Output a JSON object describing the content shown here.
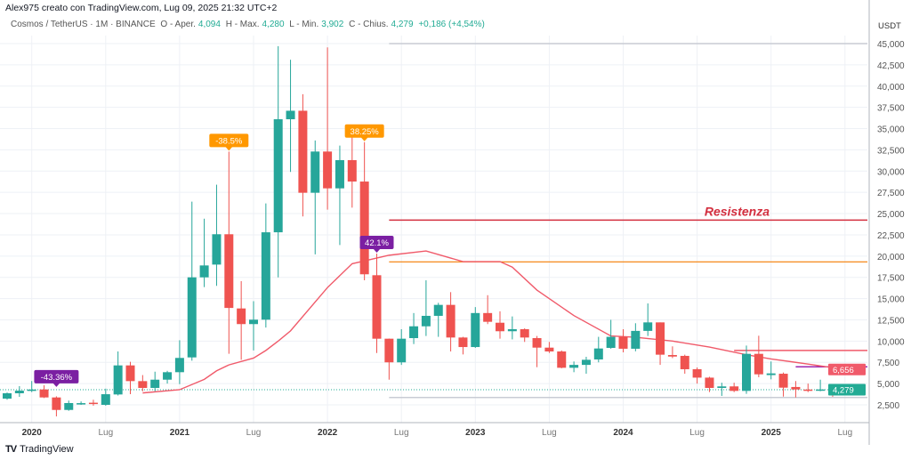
{
  "header": {
    "credit": "Alex975 creato con TradingView.com, Lug 09, 2025 21:32 UTC+2",
    "symbol": "Cosmos / TetherUS · 1M · BINANCE",
    "open_label": "O - Aper.",
    "open": "4,094",
    "high_label": "H - Max.",
    "high": "4,280",
    "low_label": "L - Min.",
    "low": "3,902",
    "close_label": "C - Chius.",
    "close": "4,279",
    "change": "+0,186 (+4,54%)"
  },
  "footer": {
    "brand": "TradingView",
    "logo_icon": "tradingview-logo-icon"
  },
  "colors": {
    "up": "#26a69a",
    "down": "#ef5350",
    "ma": "#f05a6a",
    "resistance": "#d32f3f",
    "support_orange": "#f57c00",
    "purple": "#7b1fa2",
    "orange_label": "#ff9800",
    "grid": "#eef1f6"
  },
  "chart_data": {
    "type": "candlestick",
    "title": "",
    "y_axis_unit": "USDT",
    "ylim": [
      0,
      47
    ],
    "grid": true,
    "y_ticks": [
      {
        "v": 2.5,
        "label": "2,500"
      },
      {
        "v": 5,
        "label": "5,000"
      },
      {
        "v": 7.5,
        "label": "7,500"
      },
      {
        "v": 10,
        "label": "10,000"
      },
      {
        "v": 12.5,
        "label": "12,500"
      },
      {
        "v": 15,
        "label": "15,000"
      },
      {
        "v": 17.5,
        "label": "17,500"
      },
      {
        "v": 20,
        "label": "20,000"
      },
      {
        "v": 22.5,
        "label": "22,500"
      },
      {
        "v": 25,
        "label": "25,000"
      },
      {
        "v": 27.5,
        "label": "27,500"
      },
      {
        "v": 30,
        "label": "30,000"
      },
      {
        "v": 32.5,
        "label": "32,500"
      },
      {
        "v": 35,
        "label": "35,000"
      },
      {
        "v": 37.5,
        "label": "37,500"
      },
      {
        "v": 40,
        "label": "40,000"
      },
      {
        "v": 42.5,
        "label": "42,500"
      },
      {
        "v": 45,
        "label": "45,000"
      }
    ],
    "x_ticks": [
      {
        "t": "2020-01",
        "label": "2020",
        "bold": true
      },
      {
        "t": "2020-07",
        "label": "Lug"
      },
      {
        "t": "2021-01",
        "label": "2021",
        "bold": true
      },
      {
        "t": "2021-07",
        "label": "Lug"
      },
      {
        "t": "2022-01",
        "label": "2022",
        "bold": true
      },
      {
        "t": "2022-07",
        "label": "Lug"
      },
      {
        "t": "2023-01",
        "label": "2023",
        "bold": true
      },
      {
        "t": "2023-07",
        "label": "Lug"
      },
      {
        "t": "2024-01",
        "label": "2024",
        "bold": true
      },
      {
        "t": "2024-07",
        "label": "Lug"
      },
      {
        "t": "2025-01",
        "label": "2025",
        "bold": true
      },
      {
        "t": "2025-07",
        "label": "Lug"
      }
    ],
    "candles": [
      [
        "2019-11",
        3.23,
        3.95,
        3.1,
        3.86
      ],
      [
        "2019-12",
        3.86,
        4.7,
        3.44,
        4.17
      ],
      [
        "2020-01",
        4.14,
        5.3,
        4.0,
        4.3
      ],
      [
        "2020-02",
        4.31,
        4.8,
        3.3,
        3.37
      ],
      [
        "2020-03",
        3.37,
        3.5,
        1.14,
        1.9
      ],
      [
        "2020-04",
        1.9,
        3.0,
        1.8,
        2.71
      ],
      [
        "2020-05",
        2.68,
        2.9,
        2.5,
        2.7
      ],
      [
        "2020-06",
        2.75,
        3.1,
        2.4,
        2.6
      ],
      [
        "2020-07",
        2.5,
        4.4,
        2.4,
        3.75
      ],
      [
        "2020-08",
        3.72,
        8.78,
        3.6,
        7.14
      ],
      [
        "2020-09",
        7.14,
        7.56,
        3.75,
        5.29
      ],
      [
        "2020-10",
        5.29,
        6.0,
        4.1,
        4.49
      ],
      [
        "2020-11",
        4.49,
        6.4,
        4.1,
        5.46
      ],
      [
        "2020-12",
        5.46,
        6.5,
        5.0,
        6.34
      ],
      [
        "2021-01",
        6.34,
        10.1,
        4.94,
        8.02
      ],
      [
        "2021-02",
        8.08,
        26.4,
        7.7,
        17.5
      ],
      [
        "2021-03",
        17.5,
        24.4,
        16.35,
        18.9
      ],
      [
        "2021-04",
        19.0,
        28.4,
        16.5,
        22.57
      ],
      [
        "2021-05",
        22.57,
        32.3,
        8.5,
        13.9
      ],
      [
        "2021-06",
        13.84,
        17.05,
        7.8,
        12.0
      ],
      [
        "2021-07",
        12.0,
        14.7,
        8.9,
        12.52
      ],
      [
        "2021-08",
        12.52,
        26.2,
        11.6,
        22.8
      ],
      [
        "2021-09",
        22.8,
        44.7,
        17.5,
        36.1
      ],
      [
        "2021-10",
        36.1,
        43.1,
        29.9,
        37.1
      ],
      [
        "2021-11",
        37.1,
        39.05,
        24.66,
        27.45
      ],
      [
        "2021-12",
        27.45,
        33.6,
        20.2,
        32.3
      ],
      [
        "2022-01",
        32.3,
        44.55,
        25.46,
        27.97
      ],
      [
        "2022-02",
        27.97,
        33.0,
        21.3,
        31.29
      ],
      [
        "2022-03",
        31.29,
        34.4,
        25.7,
        28.77
      ],
      [
        "2022-04",
        28.77,
        33.4,
        17.15,
        17.86
      ],
      [
        "2022-05",
        17.75,
        20.3,
        8.6,
        10.28
      ],
      [
        "2022-06",
        10.28,
        10.3,
        5.46,
        7.5
      ],
      [
        "2022-07",
        7.5,
        11.4,
        7.2,
        10.28
      ],
      [
        "2022-08",
        10.35,
        13.3,
        9.65,
        11.74
      ],
      [
        "2022-09",
        11.74,
        17.15,
        10.6,
        12.97
      ],
      [
        "2022-10",
        12.97,
        14.5,
        10.5,
        14.26
      ],
      [
        "2022-11",
        14.26,
        15.76,
        8.78,
        10.42
      ],
      [
        "2022-12",
        10.42,
        10.5,
        8.43,
        9.3
      ],
      [
        "2023-01",
        9.3,
        14.0,
        9.2,
        13.3
      ],
      [
        "2023-02",
        13.3,
        15.4,
        12.0,
        12.27
      ],
      [
        "2023-03",
        12.16,
        13.5,
        10.28,
        11.16
      ],
      [
        "2023-04",
        11.16,
        12.9,
        10.2,
        11.4
      ],
      [
        "2023-05",
        11.4,
        11.5,
        9.9,
        10.42
      ],
      [
        "2023-06",
        10.35,
        10.6,
        6.93,
        9.23
      ],
      [
        "2023-07",
        9.23,
        9.9,
        8.6,
        8.78
      ],
      [
        "2023-08",
        8.78,
        8.9,
        6.8,
        6.86
      ],
      [
        "2023-09",
        6.86,
        7.6,
        6.34,
        7.2
      ],
      [
        "2023-10",
        7.2,
        8.15,
        6.16,
        7.8
      ],
      [
        "2023-11",
        7.84,
        10.5,
        7.5,
        9.13
      ],
      [
        "2023-12",
        9.2,
        12.5,
        9.1,
        10.5
      ],
      [
        "2024-01",
        10.5,
        11.4,
        8.68,
        9.1
      ],
      [
        "2024-02",
        9.1,
        12.1,
        8.8,
        11.2
      ],
      [
        "2024-03",
        11.2,
        14.43,
        10.6,
        12.2
      ],
      [
        "2024-04",
        12.2,
        12.2,
        7.2,
        8.4
      ],
      [
        "2024-05",
        8.36,
        9.38,
        8.0,
        8.18
      ],
      [
        "2024-06",
        8.26,
        8.4,
        6.16,
        6.69
      ],
      [
        "2024-07",
        6.69,
        6.9,
        5.0,
        5.7
      ],
      [
        "2024-08",
        5.7,
        5.8,
        4.0,
        4.49
      ],
      [
        "2024-09",
        4.49,
        5.1,
        3.55,
        4.67
      ],
      [
        "2024-10",
        4.67,
        5.1,
        4.0,
        4.14
      ],
      [
        "2024-11",
        4.14,
        9.48,
        3.79,
        8.5
      ],
      [
        "2024-12",
        8.5,
        10.63,
        5.75,
        6.09
      ],
      [
        "2025-01",
        6.0,
        7.6,
        5.5,
        6.2
      ],
      [
        "2025-02",
        6.16,
        6.3,
        3.47,
        4.52
      ],
      [
        "2025-03",
        4.6,
        5.3,
        3.37,
        4.31
      ],
      [
        "2025-04",
        4.3,
        5.0,
        4.0,
        4.25
      ],
      [
        "2025-05",
        4.25,
        5.46,
        4.1,
        4.31
      ],
      [
        "2025-06",
        4.35,
        4.5,
        3.45,
        4.0
      ],
      [
        "2025-07",
        4.094,
        4.28,
        3.902,
        4.279
      ]
    ],
    "moving_average": [
      [
        "2020-10",
        3.9
      ],
      [
        "2021-01",
        4.28
      ],
      [
        "2021-03",
        5.5
      ],
      [
        "2021-04",
        6.5
      ],
      [
        "2021-05",
        7.2
      ],
      [
        "2021-07",
        8.0
      ],
      [
        "2021-08",
        8.9
      ],
      [
        "2021-09",
        10.0
      ],
      [
        "2021-10",
        11.2
      ],
      [
        "2022-01",
        16.3
      ],
      [
        "2022-03",
        19.1
      ],
      [
        "2022-06",
        20.1
      ],
      [
        "2022-09",
        20.6
      ],
      [
        "2022-12",
        19.35
      ],
      [
        "2023-03",
        19.35
      ],
      [
        "2023-04",
        18.7
      ],
      [
        "2023-06",
        16.0
      ],
      [
        "2023-09",
        13.0
      ],
      [
        "2023-12",
        10.6
      ],
      [
        "2024-02",
        10.45
      ],
      [
        "2024-05",
        10.0
      ],
      [
        "2024-08",
        9.3
      ],
      [
        "2024-11",
        8.4
      ],
      [
        "2025-01",
        7.9
      ],
      [
        "2025-04",
        7.3
      ],
      [
        "2025-07",
        6.656
      ]
    ],
    "horizontal_lines": [
      {
        "v": 45.0,
        "from": "2022-06",
        "color": "#c8ccd4",
        "width": 1.5
      },
      {
        "v": 24.24,
        "from": "2022-06",
        "color": "#d32f3f",
        "width": 1.5,
        "label": "Resistenza"
      },
      {
        "v": 19.32,
        "from": "2022-06",
        "color": "#f57c00",
        "width": 1.2
      },
      {
        "v": 8.9,
        "from": "2024-10",
        "color": "#f05a6a",
        "width": 1.5
      },
      {
        "v": 6.97,
        "from": "2025-03",
        "color": "#9c27b0",
        "width": 1.5
      },
      {
        "v": 3.37,
        "from": "2022-06",
        "color": "#c8ccd4",
        "width": 1.5
      }
    ],
    "annotations": [
      {
        "t": "2020-03",
        "v": 4.5,
        "text": "-43.36%",
        "color": "#7b1fa2"
      },
      {
        "t": "2021-05",
        "v": 32.3,
        "text": "-38.5%",
        "color": "#ff9800"
      },
      {
        "t": "2022-04",
        "v": 33.4,
        "text": "38.25%",
        "color": "#ff9800"
      },
      {
        "t": "2022-05",
        "v": 20.3,
        "text": "42.1%",
        "color": "#7b1fa2"
      }
    ],
    "price_badges": [
      {
        "v": 6.656,
        "label": "6,656",
        "color": "#f05a6a"
      },
      {
        "v": 4.279,
        "label": "4,279",
        "color": "#22ab94"
      }
    ],
    "last_price": 4.279
  }
}
